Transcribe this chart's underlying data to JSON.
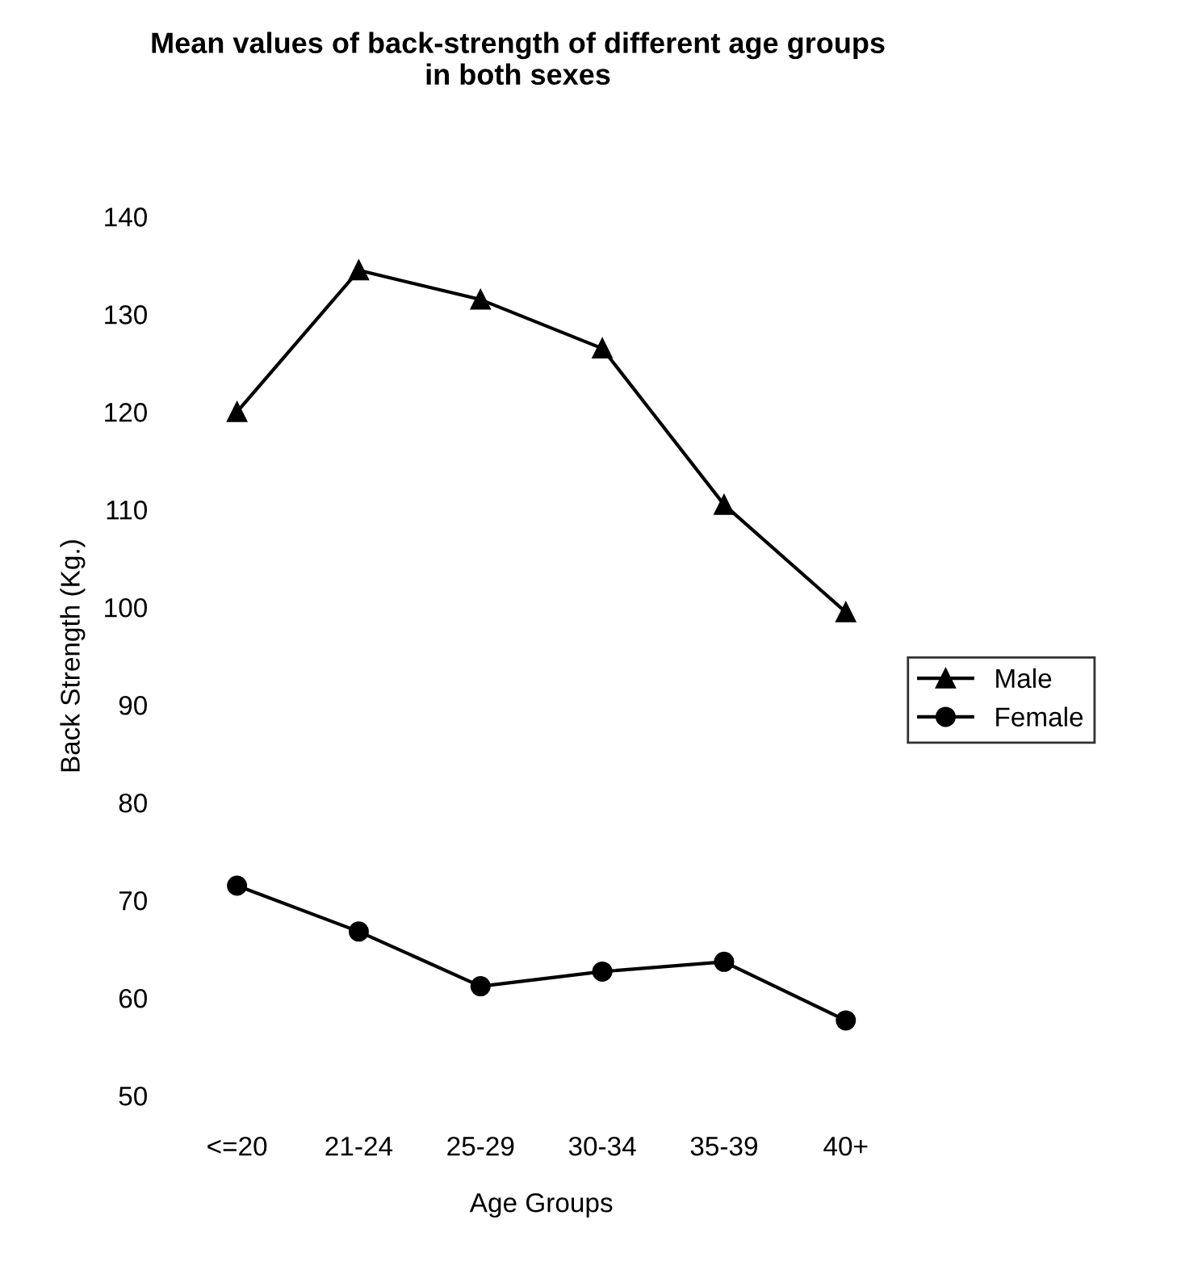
{
  "chart_data": {
    "type": "line",
    "title": "Mean values of back-strength of different age groups\nin both sexes",
    "xlabel": "Age Groups",
    "ylabel": "Back Strength (Kg.)",
    "categories": [
      "<=20",
      "21-24",
      "25-29",
      "30-34",
      "35-39",
      "40+"
    ],
    "series": [
      {
        "name": "Male",
        "color": "#000000",
        "marker": "triangle",
        "values": [
          120,
          134.5,
          131.5,
          126.5,
          110.5,
          99.5
        ]
      },
      {
        "name": "Female",
        "color": "#000000",
        "marker": "circle",
        "values": [
          71.5,
          66.8,
          61.2,
          62.7,
          63.7,
          57.7
        ]
      }
    ],
    "ylim": [
      50,
      140
    ],
    "yticks": [
      50,
      60,
      70,
      80,
      90,
      100,
      110,
      120,
      130,
      140
    ],
    "grid": false,
    "legend": "right",
    "line_style": "solid"
  }
}
